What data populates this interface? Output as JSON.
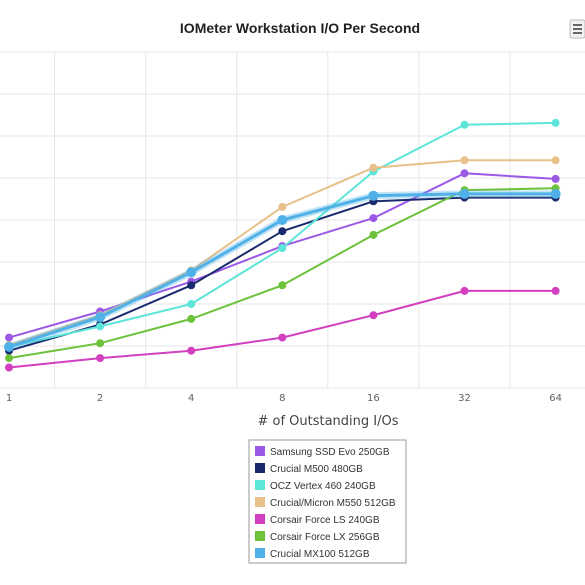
{
  "chart_data": {
    "type": "line",
    "title": "IOMeter Workstation I/O Per Second",
    "xlabel": "# of Outstanding I/Os",
    "ylabel": "",
    "x_scale": "log2",
    "categories": [
      "1",
      "2",
      "4",
      "8",
      "16",
      "32",
      "64"
    ],
    "x": [
      1,
      2,
      4,
      8,
      16,
      32,
      64
    ],
    "ylim": [
      0,
      9
    ],
    "grid": true,
    "legend_position": "bottom",
    "series": [
      {
        "name": "Samsung SSD Evo 250GB",
        "color": "#9b59e6",
        "values": [
          1.35,
          2.05,
          2.85,
          3.8,
          4.55,
          5.75,
          5.6
        ]
      },
      {
        "name": "Crucial M500 480GB",
        "color": "#1a2a6c",
        "values": [
          1.0,
          1.7,
          2.75,
          4.2,
          5.0,
          5.1,
          5.1
        ]
      },
      {
        "name": "OCZ Vertex 460 240GB",
        "color": "#5ce5d8",
        "values": [
          1.1,
          1.65,
          2.25,
          3.75,
          5.8,
          7.05,
          7.1
        ]
      },
      {
        "name": "Crucial/Micron M550 512GB",
        "color": "#e8c08a",
        "values": [
          1.15,
          1.95,
          3.15,
          4.85,
          5.9,
          6.1,
          6.1
        ]
      },
      {
        "name": "Corsair Force LS 240GB",
        "color": "#d23fbf",
        "values": [
          0.55,
          0.8,
          1.0,
          1.35,
          1.95,
          2.6,
          2.6
        ]
      },
      {
        "name": "Corsair Force LX 256GB",
        "color": "#6cc23a",
        "values": [
          0.8,
          1.2,
          1.85,
          2.75,
          4.1,
          5.3,
          5.35
        ]
      },
      {
        "name": "Crucial MX100 512GB",
        "color": "#4fb1e8",
        "values": [
          1.1,
          1.9,
          3.1,
          4.5,
          5.15,
          5.2,
          5.2
        ]
      }
    ]
  }
}
